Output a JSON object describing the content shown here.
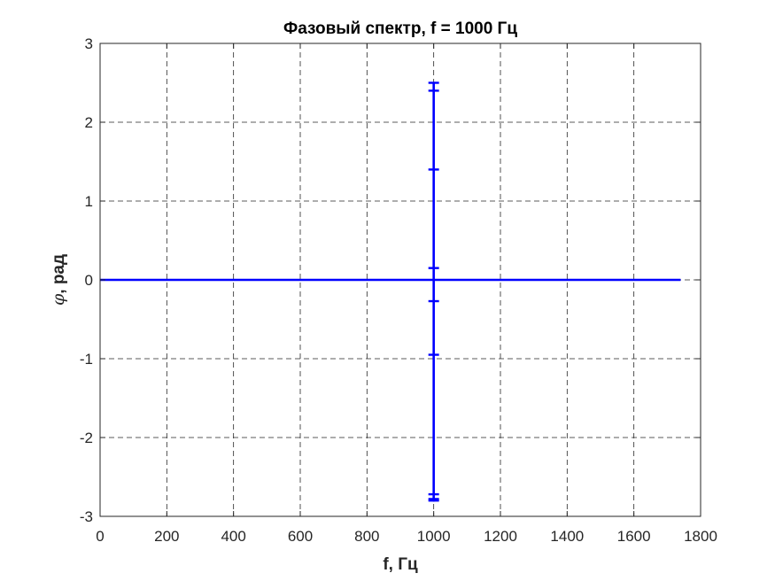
{
  "chart_data": {
    "type": "line",
    "title": "Фазовый спектр, f = 1000 Гц",
    "xlabel": "f, Гц",
    "ylabel_symbol": "φ",
    "ylabel_text": ", рад",
    "xlim": [
      0,
      1800
    ],
    "ylim": [
      -3,
      3
    ],
    "xticks": [
      0,
      200,
      400,
      600,
      800,
      1000,
      1200,
      1400,
      1600,
      1800
    ],
    "yticks": [
      -3,
      -2,
      -1,
      0,
      1,
      2,
      3
    ],
    "xtick_labels": [
      "0",
      "200",
      "400",
      "600",
      "800",
      "1000",
      "1200",
      "1400",
      "1600",
      "1800"
    ],
    "ytick_labels": [
      "-3",
      "-2",
      "-1",
      "0",
      "1",
      "2",
      "3"
    ],
    "grid": true,
    "series": [
      {
        "color": "#0000ff",
        "x": [
          0,
          1000,
          1000,
          1000,
          1000,
          1000,
          1000,
          1000,
          1000,
          1000,
          1000,
          1000,
          1000,
          1000,
          1000,
          1740
        ],
        "y": [
          0,
          0,
          2.5,
          2.4,
          1.4,
          0.15,
          -0.27,
          -0.95,
          -2.72,
          -2.78,
          -2.8,
          -0.95,
          -0.27,
          0.15,
          0,
          0
        ],
        "markers_x": [
          1000,
          1000,
          1000,
          1000,
          1000,
          1000,
          1000,
          1000,
          1000
        ],
        "markers_y": [
          2.5,
          2.4,
          1.4,
          0.15,
          -0.27,
          -0.95,
          -2.72,
          -2.78,
          -2.8
        ]
      }
    ]
  }
}
